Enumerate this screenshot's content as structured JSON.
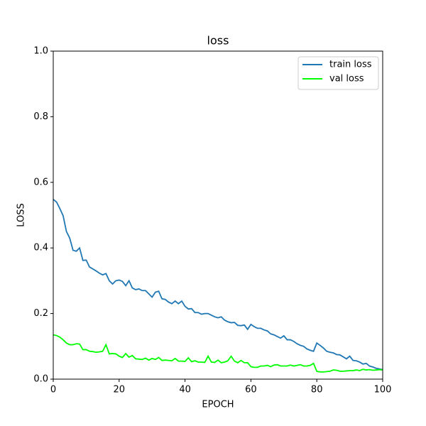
{
  "chart_data": {
    "type": "line",
    "title": "loss",
    "x_label": "EPOCH",
    "y_label": "LOSS",
    "x": [
      0,
      1,
      2,
      3,
      4,
      5,
      6,
      7,
      8,
      9,
      10,
      11,
      12,
      13,
      14,
      15,
      16,
      17,
      18,
      19,
      20,
      21,
      22,
      23,
      24,
      25,
      26,
      27,
      28,
      29,
      30,
      31,
      32,
      33,
      34,
      35,
      36,
      37,
      38,
      39,
      40,
      41,
      42,
      43,
      44,
      45,
      46,
      47,
      48,
      49,
      50,
      51,
      52,
      53,
      54,
      55,
      56,
      57,
      58,
      59,
      60,
      61,
      62,
      63,
      64,
      65,
      66,
      67,
      68,
      69,
      70,
      71,
      72,
      73,
      74,
      75,
      76,
      77,
      78,
      79,
      80,
      81,
      82,
      83,
      84,
      85,
      86,
      87,
      88,
      89,
      90,
      91,
      92,
      93,
      94,
      95,
      96,
      97,
      98,
      99,
      100
    ],
    "series": [
      {
        "name": "train loss",
        "color": "#1f77b4",
        "values": [
          0.548,
          0.54,
          0.52,
          0.498,
          0.45,
          0.43,
          0.393,
          0.39,
          0.4,
          0.362,
          0.363,
          0.342,
          0.336,
          0.33,
          0.323,
          0.318,
          0.322,
          0.3,
          0.29,
          0.3,
          0.302,
          0.298,
          0.285,
          0.3,
          0.278,
          0.273,
          0.275,
          0.27,
          0.27,
          0.26,
          0.25,
          0.265,
          0.268,
          0.245,
          0.243,
          0.235,
          0.23,
          0.238,
          0.23,
          0.238,
          0.222,
          0.214,
          0.215,
          0.203,
          0.203,
          0.198,
          0.2,
          0.2,
          0.195,
          0.19,
          0.187,
          0.19,
          0.18,
          0.175,
          0.172,
          0.173,
          0.164,
          0.163,
          0.165,
          0.152,
          0.167,
          0.16,
          0.155,
          0.155,
          0.15,
          0.147,
          0.138,
          0.135,
          0.13,
          0.125,
          0.132,
          0.12,
          0.12,
          0.115,
          0.108,
          0.103,
          0.1,
          0.092,
          0.088,
          0.085,
          0.11,
          0.103,
          0.095,
          0.085,
          0.082,
          0.08,
          0.075,
          0.074,
          0.068,
          0.062,
          0.07,
          0.057,
          0.056,
          0.052,
          0.046,
          0.048,
          0.04,
          0.037,
          0.033,
          0.031,
          0.029
        ]
      },
      {
        "name": "val loss",
        "color": "#00ff00",
        "values": [
          0.135,
          0.133,
          0.128,
          0.12,
          0.11,
          0.105,
          0.105,
          0.108,
          0.107,
          0.09,
          0.09,
          0.085,
          0.084,
          0.082,
          0.083,
          0.085,
          0.105,
          0.077,
          0.078,
          0.077,
          0.07,
          0.066,
          0.078,
          0.067,
          0.072,
          0.062,
          0.061,
          0.06,
          0.064,
          0.058,
          0.063,
          0.06,
          0.066,
          0.057,
          0.058,
          0.057,
          0.056,
          0.063,
          0.055,
          0.055,
          0.054,
          0.065,
          0.053,
          0.056,
          0.052,
          0.052,
          0.051,
          0.07,
          0.052,
          0.051,
          0.058,
          0.05,
          0.052,
          0.056,
          0.07,
          0.055,
          0.05,
          0.057,
          0.05,
          0.05,
          0.038,
          0.036,
          0.036,
          0.04,
          0.04,
          0.042,
          0.038,
          0.043,
          0.044,
          0.04,
          0.04,
          0.04,
          0.043,
          0.04,
          0.042,
          0.044,
          0.04,
          0.04,
          0.042,
          0.048,
          0.024,
          0.022,
          0.022,
          0.023,
          0.024,
          0.028,
          0.027,
          0.024,
          0.024,
          0.025,
          0.026,
          0.026,
          0.028,
          0.026,
          0.03,
          0.028,
          0.029,
          0.027,
          0.028,
          0.029,
          0.028
        ]
      }
    ],
    "xlim": [
      0,
      100
    ],
    "xticks": [
      0,
      20,
      40,
      60,
      80,
      100
    ],
    "ylim": [
      0,
      1
    ],
    "yticks": [
      {
        "value": 0,
        "label": "0.0"
      },
      {
        "value": 0.2,
        "label": "0.2"
      },
      {
        "value": 0.4,
        "label": "0.4"
      },
      {
        "value": 0.6,
        "label": "0.6"
      },
      {
        "value": 0.8,
        "label": "0.8"
      },
      {
        "value": 1,
        "label": "1.0"
      }
    ],
    "legend": "upper right"
  }
}
